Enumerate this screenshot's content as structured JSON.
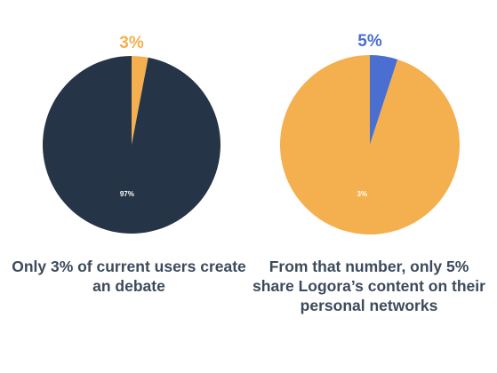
{
  "chart_data": [
    {
      "type": "pie",
      "top_label": "3%",
      "slices": [
        {
          "label": "3%",
          "value": 3,
          "color": "#f4b04f",
          "label_shown": false
        },
        {
          "label": "97%",
          "value": 97,
          "color": "#263447",
          "label_shown": true
        }
      ],
      "caption": "Only 3% of current users create an debate"
    },
    {
      "type": "pie",
      "top_label": "5%",
      "slices": [
        {
          "label": "5%",
          "value": 5,
          "color": "#4a6fd0",
          "label_shown": false
        },
        {
          "label": "3%",
          "value": 95,
          "color": "#f4b04f",
          "label_shown": true
        }
      ],
      "caption": "From that number, only 5% share Logora’s content on their personal networks"
    }
  ],
  "colors": {
    "caption_text": "#3d4a5c",
    "top_label_left": "#f4b04f",
    "top_label_right": "#4a6fd0"
  }
}
